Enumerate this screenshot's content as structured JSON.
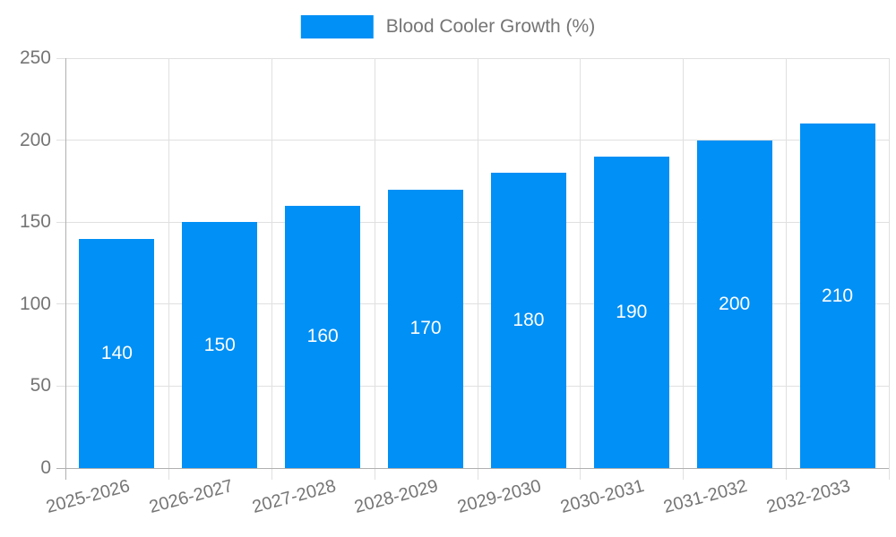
{
  "legend": {
    "label": "Blood Cooler Growth (%)"
  },
  "colors": {
    "bar": "#0190f5",
    "grid_line": "#e0e0e0",
    "axis_line": "#b0b0b0",
    "tick_text": "#757575",
    "value_text": "#ffffff",
    "background": "#ffffff"
  },
  "chart_data": {
    "type": "bar",
    "title": "",
    "categories": [
      "2025-2026",
      "2026-2027",
      "2027-2028",
      "2028-2029",
      "2029-2030",
      "2030-2031",
      "2031-2032",
      "2032-2033"
    ],
    "series": [
      {
        "name": "Blood Cooler Growth (%)",
        "values": [
          140,
          150,
          160,
          170,
          180,
          190,
          200,
          210
        ]
      }
    ],
    "xlabel": "",
    "ylabel": "",
    "ylim": [
      0,
      250
    ],
    "ytick_step": 50,
    "ytick_labels": [
      "0",
      "50",
      "100",
      "150",
      "200",
      "250"
    ],
    "grid": true,
    "legend_position": "top-center",
    "value_label_position": "inside-center",
    "xtick_rotation_deg": -15
  }
}
